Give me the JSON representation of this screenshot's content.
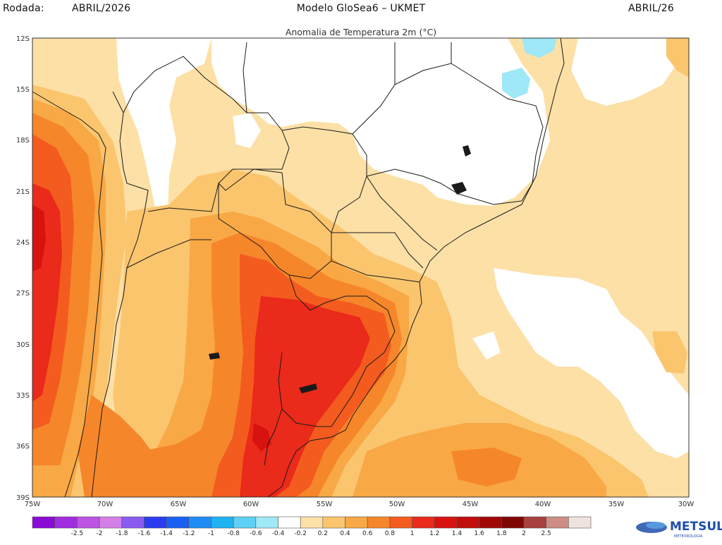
{
  "header": {
    "left_label": "Rodada:",
    "left_value": "ABRIL/2026",
    "center": "Modelo GloSea6 – UKMET",
    "right": "ABRIL/26",
    "subtitle": "Anomalia de Temperatura 2m (°C)"
  },
  "axes": {
    "lat_labels": [
      "12S",
      "15S",
      "18S",
      "21S",
      "24S",
      "27S",
      "30S",
      "33S",
      "36S",
      "39S"
    ],
    "lon_labels": [
      "75W",
      "70W",
      "65W",
      "60W",
      "55W",
      "50W",
      "45W",
      "40W",
      "35W",
      "30W"
    ]
  },
  "colorbar": {
    "colors": [
      "#8a0ad6",
      "#a12de0",
      "#bd55e4",
      "#d47ee8",
      "#8a5bf0",
      "#2a3cf0",
      "#1a5ff2",
      "#1f8cf5",
      "#1fb3f2",
      "#5ed0f5",
      "#9ee8f7",
      "#ffffff",
      "#fde0a6",
      "#fbc56e",
      "#f8a845",
      "#f6862a",
      "#f35c1e",
      "#ea2a1a",
      "#d8120f",
      "#bf0e0b",
      "#9e0906",
      "#7e0704",
      "#a8403e",
      "#cd8c86",
      "#efe3df"
    ],
    "labels": [
      "-2.5",
      "-2",
      "-1.8",
      "-1.6",
      "-1.4",
      "-1.2",
      "-1",
      "-0.8",
      "-0.6",
      "-0.4",
      "-0.2",
      "0.2",
      "0.4",
      "0.6",
      "0.8",
      "1",
      "1.2",
      "1.4",
      "1.6",
      "1.8",
      "2",
      "2.5"
    ]
  },
  "logo": {
    "text": "METSUL",
    "subtext": "METEOROLOGIA",
    "color": "#1e4fa8"
  }
}
